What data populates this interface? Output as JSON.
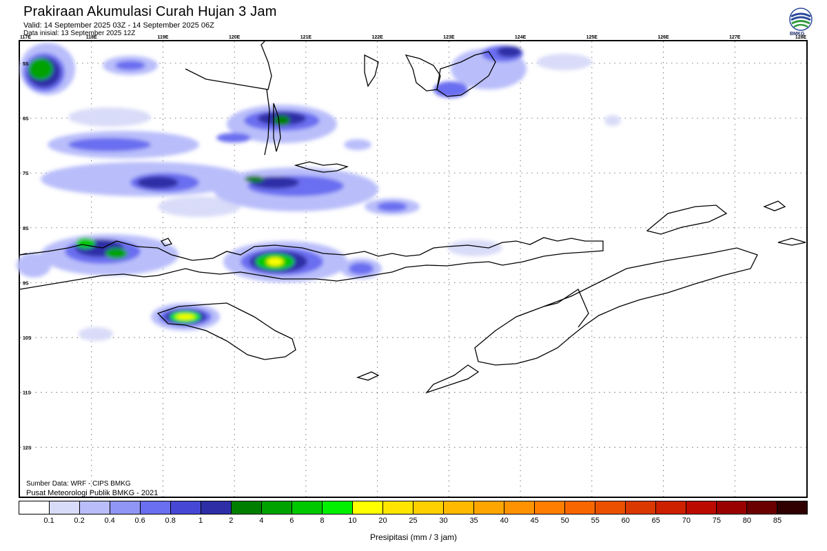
{
  "header": {
    "title": "Prakiraan Akumulasi Curah Hujan 3 Jam",
    "valid": "Valid: 14 September 2025 03Z - 14 September 2025 06Z",
    "initial": "Data inisial: 13 September 2025 12Z",
    "logo_text": "BMKG"
  },
  "map": {
    "lon_labels": [
      "117E",
      "118E",
      "119E",
      "120E",
      "121E",
      "122E",
      "123E",
      "124E",
      "125E",
      "126E",
      "127E",
      "128E"
    ],
    "lat_labels": [
      "5S",
      "6S",
      "7S",
      "8S",
      "9S",
      "10S",
      "11S",
      "12S"
    ],
    "lon_range": [
      117,
      128
    ],
    "lat_range": [
      -4.6,
      -12.9
    ],
    "grid": true
  },
  "footer": {
    "source": "Sumber Data: WRF - CIPS BMKG",
    "credit": "Pusat Meteorologi Publik BMKG - 2021"
  },
  "legend": {
    "unit_label": "Presipitasi (mm / 3 jam)",
    "ticks": [
      "0.1",
      "0.2",
      "0.4",
      "0.6",
      "0.8",
      "1",
      "2",
      "4",
      "6",
      "8",
      "10",
      "20",
      "25",
      "30",
      "35",
      "40",
      "45",
      "50",
      "55",
      "60",
      "65",
      "70",
      "75",
      "80",
      "85"
    ],
    "colors": [
      "#ffffff",
      "#d9dcf8",
      "#b9befa",
      "#9096f5",
      "#6a6ef0",
      "#4648d5",
      "#2e2fa6",
      "#007e00",
      "#00a200",
      "#00c800",
      "#00f000",
      "#ffff00",
      "#ffe500",
      "#ffd000",
      "#ffba00",
      "#ffa500",
      "#ff9200",
      "#ff7e00",
      "#f86600",
      "#ea5000",
      "#db3800",
      "#cc2000",
      "#bb0a00",
      "#990000",
      "#6a0000",
      "#300000"
    ]
  }
}
